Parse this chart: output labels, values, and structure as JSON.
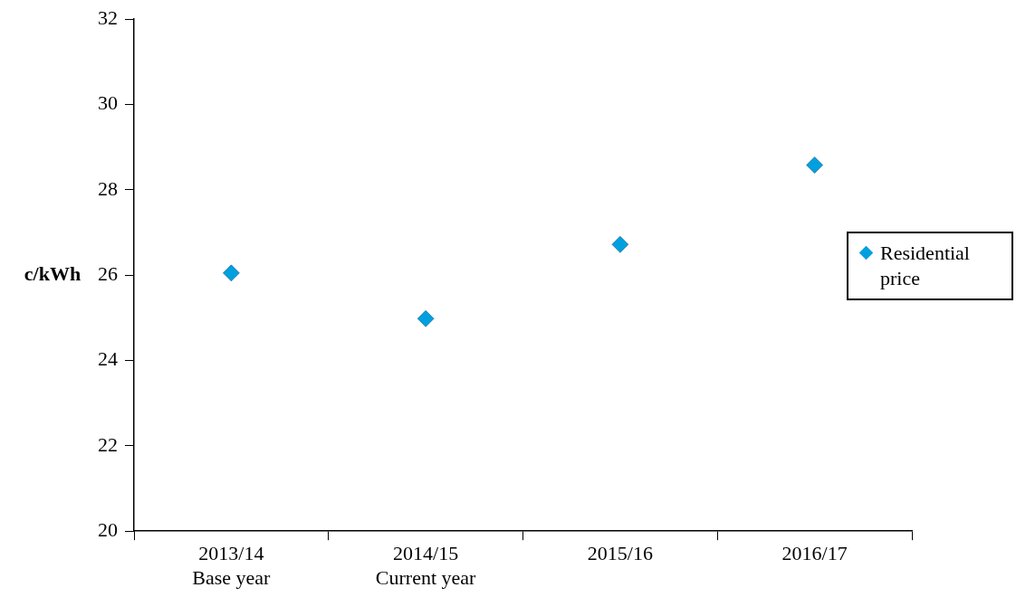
{
  "chart_data": {
    "type": "scatter",
    "ylabel": "c/kWh",
    "categories": [
      "2013/14\nBase year",
      "2014/15\nCurrent year",
      "2015/16",
      "2016/17"
    ],
    "series": [
      {
        "name": "Residential price",
        "color": "#00a0e0",
        "values": [
          26.05,
          24.98,
          26.72,
          28.58
        ]
      }
    ],
    "ylim": [
      20,
      32
    ],
    "yticks": [
      20,
      22,
      24,
      26,
      28,
      30,
      32
    ],
    "grid": false,
    "legend": "right",
    "marker": "diamond"
  }
}
